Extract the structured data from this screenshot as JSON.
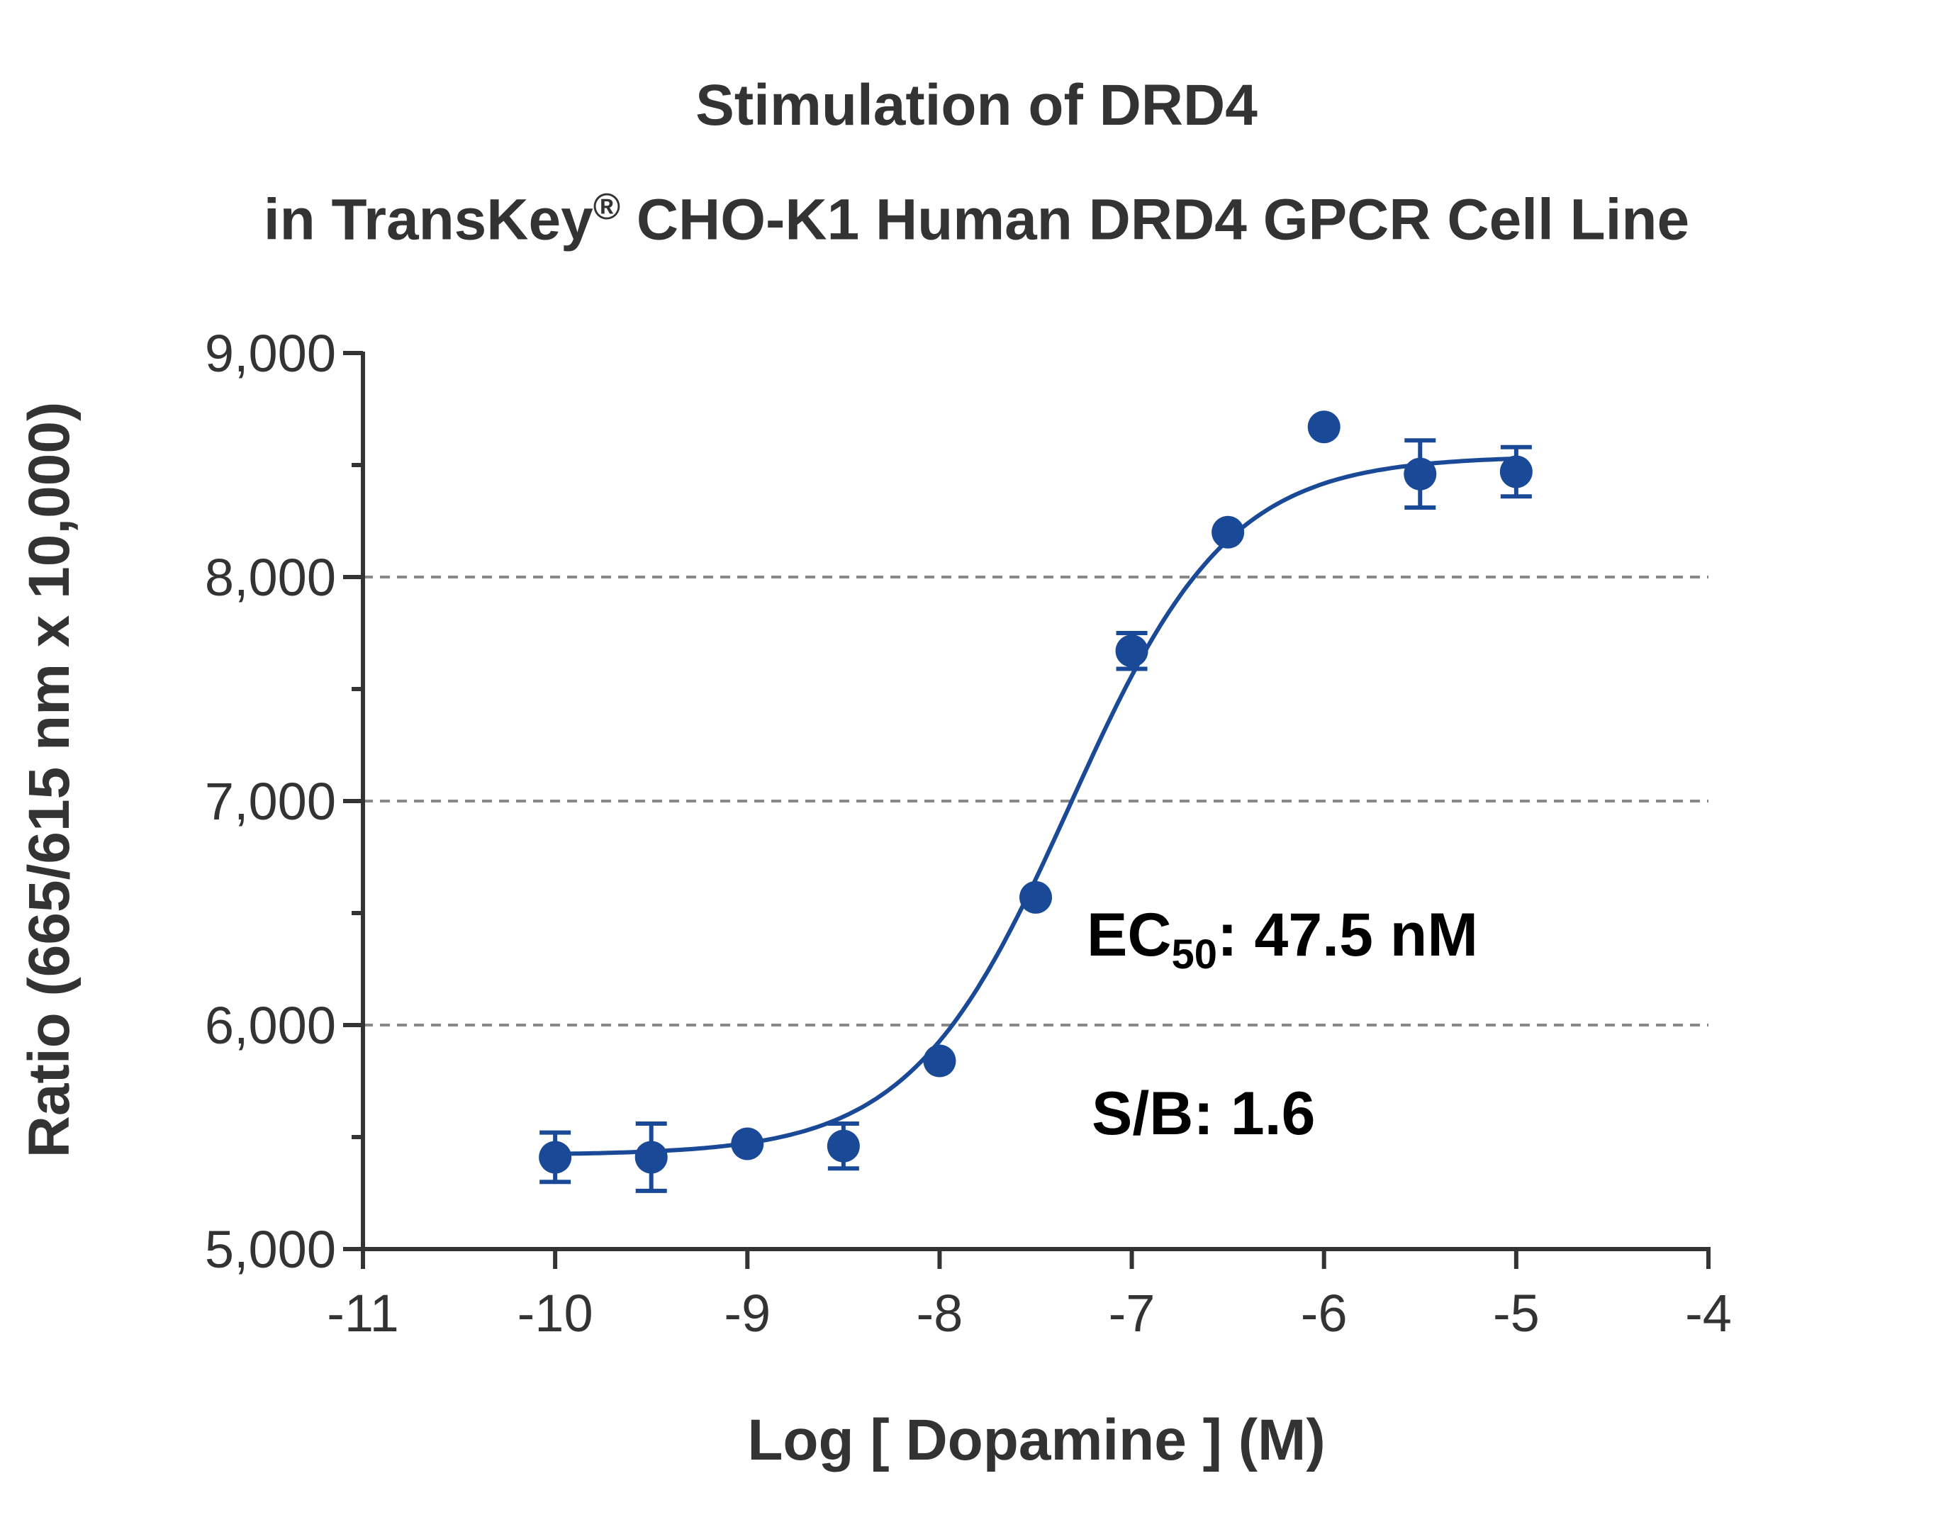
{
  "title": {
    "line1": "Stimulation of  DRD4",
    "line2_pre": "in TransKey",
    "line2_sup": "®",
    "line2_post": " CHO-K1 Human DRD4 GPCR Cell Line"
  },
  "annotations": {
    "ec50_prefix": "EC",
    "ec50_sub": "50",
    "ec50_value": ": 47.5 nM",
    "sb": "S/B: 1.6"
  },
  "colors": {
    "series": "#1a4a97",
    "axis": "#333333",
    "grid": "#888888"
  },
  "chart_data": {
    "type": "scatter",
    "xlabel": "Log [ Dopamine ]  (M)",
    "ylabel": "Ratio (665/615 nm x 10,000)",
    "xlim": [
      -11,
      -4
    ],
    "ylim": [
      5000,
      9000
    ],
    "x_ticks": [
      -11,
      -10,
      -9,
      -8,
      -7,
      -6,
      -5,
      -4
    ],
    "x_tick_labels": [
      "-11",
      "-10",
      "-9",
      "-8",
      "-7",
      "-6",
      "-5",
      "-4"
    ],
    "y_ticks": [
      5000,
      6000,
      7000,
      8000,
      9000
    ],
    "y_tick_labels": [
      "5,000",
      "6,000",
      "7,000",
      "8,000",
      "9,000"
    ],
    "y_minor_ticks": [
      5500,
      6500,
      7500,
      8500
    ],
    "grid": {
      "y_dashed_at": [
        6000,
        7000,
        8000
      ]
    },
    "series": [
      {
        "x": [
          -10,
          -9.5,
          -9,
          -8.5,
          -8,
          -7.5,
          -7,
          -6.5,
          -6,
          -5.5,
          -5
        ],
        "y": [
          5410,
          5410,
          5470,
          5460,
          5840,
          6570,
          7670,
          8200,
          8670,
          8460,
          8470
        ],
        "error": [
          110,
          150,
          0,
          100,
          0,
          0,
          80,
          0,
          0,
          150,
          110
        ]
      }
    ],
    "fit": {
      "model": "four-parameter logistic",
      "bottom": 5420,
      "top": 8540,
      "log_ec50": -7.323,
      "hill_slope": 1.05
    }
  }
}
